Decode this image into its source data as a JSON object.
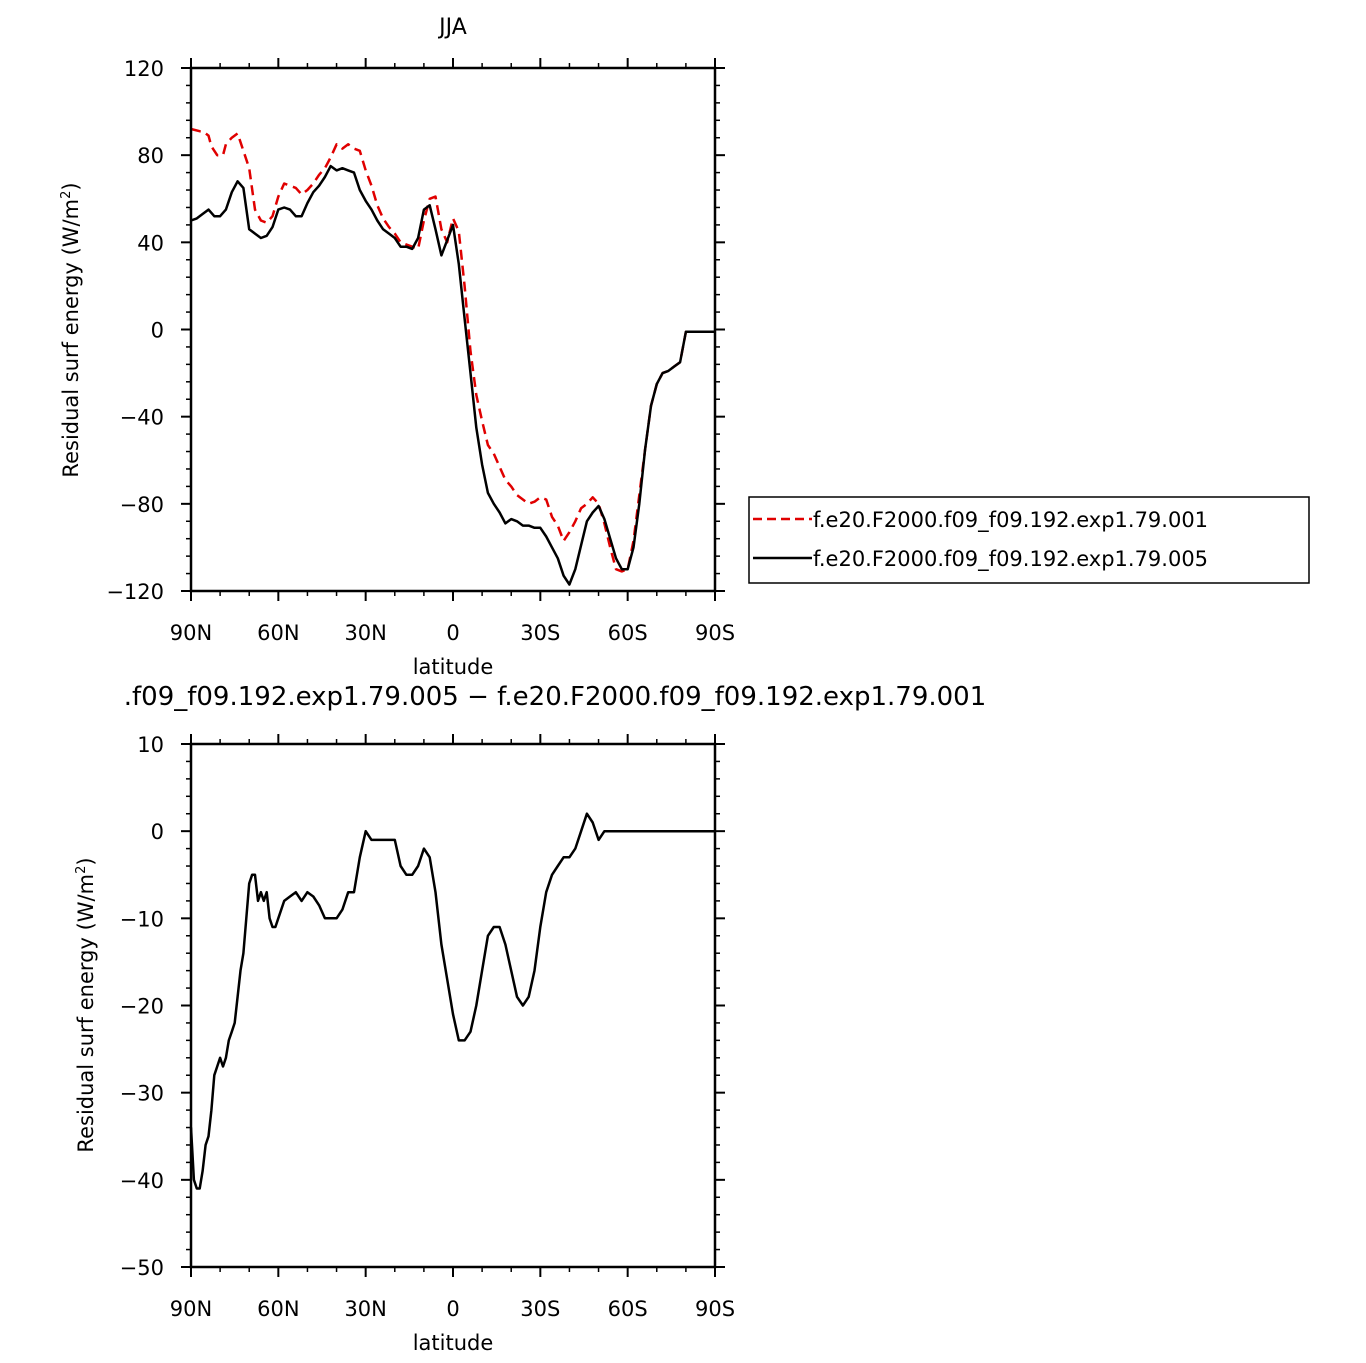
{
  "chart_data": [
    {
      "type": "line",
      "title": "JJA",
      "xlabel": "latitude",
      "ylabel": "Residual surf energy (W/m²)",
      "ylabel_main": "Residual surf energy (W/m",
      "ylabel_sup": "2",
      "ylabel_end": ")",
      "xlim": [
        90,
        -90
      ],
      "ylim": [
        -120,
        120
      ],
      "x_ticks": [
        90,
        60,
        30,
        0,
        -30,
        -60,
        -90
      ],
      "x_tick_labels": [
        "90N",
        "60N",
        "30N",
        "0",
        "30S",
        "60S",
        "90S"
      ],
      "y_ticks": [
        -120,
        -80,
        -40,
        0,
        40,
        80,
        120
      ],
      "y_tick_labels": [
        "−120",
        "−80",
        "−40",
        "0",
        "40",
        "80",
        "120"
      ],
      "legend_position": "right",
      "series": [
        {
          "name": "f.e20.F2000.f09_f09.192.exp1.79.001",
          "color": "#e00000",
          "dash": "dashed",
          "x": [
            90,
            87,
            86,
            84,
            83,
            81,
            79,
            78,
            76,
            74,
            72,
            70,
            68,
            66,
            64,
            62,
            60,
            58,
            56,
            54,
            52,
            50,
            48,
            46,
            44,
            42,
            40,
            38,
            36,
            34,
            32,
            30,
            28,
            26,
            24,
            22,
            20,
            18,
            16,
            14,
            12,
            10,
            8,
            6,
            4,
            2,
            0,
            -2,
            -4,
            -6,
            -8,
            -10,
            -12,
            -14,
            -16,
            -18,
            -20,
            -22,
            -24,
            -26,
            -28,
            -30,
            -32,
            -34,
            -36,
            -38,
            -40,
            -42,
            -44,
            -46,
            -48,
            -50,
            -52,
            -54,
            -56,
            -58,
            -60,
            -62,
            -64,
            -66,
            -68,
            -70,
            -72,
            -74,
            -76,
            -78,
            -80,
            -82,
            -84,
            -86,
            -88,
            -90
          ],
          "y": [
            92,
            91,
            91,
            89,
            84,
            80,
            80,
            85,
            88,
            90,
            82,
            74,
            55,
            50,
            49,
            52,
            61,
            67,
            66,
            65,
            62,
            64,
            67,
            71,
            74,
            79,
            85,
            83,
            85,
            83,
            82,
            73,
            66,
            57,
            51,
            47,
            44,
            40,
            39,
            38,
            37,
            50,
            60,
            61,
            46,
            40,
            51,
            45,
            20,
            -10,
            -30,
            -42,
            -53,
            -57,
            -63,
            -69,
            -72,
            -76,
            -78,
            -80,
            -79,
            -77,
            -78,
            -86,
            -90,
            -97,
            -93,
            -88,
            -82,
            -80,
            -77,
            -80,
            -89,
            -100,
            -110,
            -111,
            -110,
            -97,
            -76,
            -55,
            -35,
            -25,
            -20,
            -19,
            -17,
            -15,
            -1,
            -1,
            -1,
            -1,
            -1,
            -1
          ]
        },
        {
          "name": "f.e20.F2000.f09_f09.192.exp1.79.005",
          "color": "#000000",
          "dash": "solid",
          "x": [
            90,
            88,
            86,
            84,
            82,
            80,
            78,
            76,
            74,
            72,
            70,
            68,
            66,
            64,
            62,
            60,
            58,
            56,
            54,
            52,
            50,
            48,
            46,
            44,
            42,
            40,
            38,
            36,
            34,
            32,
            30,
            28,
            26,
            24,
            22,
            20,
            18,
            16,
            14,
            12,
            10,
            8,
            6,
            4,
            2,
            0,
            -2,
            -4,
            -6,
            -8,
            -10,
            -12,
            -14,
            -16,
            -18,
            -20,
            -22,
            -24,
            -26,
            -28,
            -30,
            -32,
            -34,
            -36,
            -38,
            -40,
            -42,
            -44,
            -46,
            -48,
            -50,
            -52,
            -54,
            -56,
            -58,
            -60,
            -62,
            -64,
            -66,
            -68,
            -70,
            -72,
            -74,
            -76,
            -78,
            -80,
            -82,
            -84,
            -86,
            -88,
            -90
          ],
          "y": [
            50,
            51,
            53,
            55,
            52,
            52,
            55,
            63,
            68,
            65,
            46,
            44,
            42,
            43,
            47,
            55,
            56,
            55,
            52,
            52,
            58,
            63,
            66,
            70,
            75,
            73,
            74,
            73,
            72,
            64,
            59,
            55,
            50,
            46,
            44,
            42,
            38,
            38,
            37,
            42,
            55,
            57,
            46,
            34,
            41,
            48,
            30,
            5,
            -20,
            -45,
            -62,
            -75,
            -80,
            -84,
            -89,
            -87,
            -88,
            -90,
            -90,
            -91,
            -91,
            -95,
            -100,
            -105,
            -113,
            -117,
            -110,
            -99,
            -88,
            -84,
            -81,
            -87,
            -96,
            -105,
            -110,
            -110,
            -100,
            -80,
            -55,
            -35,
            -25,
            -20,
            -19,
            -17,
            -15,
            -1,
            -1,
            -1,
            -1,
            -1,
            -1
          ]
        }
      ]
    },
    {
      "type": "line",
      "title": ".f09_f09.192.exp1.79.005 − f.e20.F2000.f09_f09.192.exp1.79.001",
      "xlabel": "latitude",
      "ylabel": "Residual surf energy (W/m²)",
      "ylabel_main": "Residual surf energy (W/m",
      "ylabel_sup": "2",
      "ylabel_end": ")",
      "xlim": [
        90,
        -90
      ],
      "ylim": [
        -50,
        10
      ],
      "x_ticks": [
        90,
        60,
        30,
        0,
        -30,
        -60,
        -90
      ],
      "x_tick_labels": [
        "90N",
        "60N",
        "30N",
        "0",
        "30S",
        "60S",
        "90S"
      ],
      "y_ticks": [
        -50,
        -40,
        -30,
        -20,
        -10,
        0,
        10
      ],
      "y_tick_labels": [
        "−50",
        "−40",
        "−30",
        "−20",
        "−10",
        "0",
        "10"
      ],
      "series": [
        {
          "color": "#000000",
          "dash": "solid",
          "x": [
            90,
            89,
            88,
            87,
            86,
            85,
            84,
            83,
            82,
            81,
            80,
            79,
            78,
            77,
            76,
            75,
            74,
            73,
            72,
            71,
            70,
            69,
            68,
            67,
            66,
            65,
            64,
            63,
            62,
            61,
            60,
            58,
            56,
            54,
            52,
            50,
            48,
            46,
            44,
            42,
            40,
            38,
            36,
            34,
            32,
            30,
            28,
            26,
            24,
            22,
            20,
            18,
            16,
            14,
            12,
            10,
            8,
            6,
            4,
            2,
            0,
            -2,
            -4,
            -6,
            -8,
            -10,
            -12,
            -14,
            -16,
            -18,
            -20,
            -22,
            -24,
            -26,
            -28,
            -30,
            -32,
            -34,
            -36,
            -38,
            -40,
            -42,
            -44,
            -46,
            -48,
            -50,
            -52,
            -54,
            -56,
            -58,
            -60,
            -62,
            -64,
            -66,
            -68,
            -70,
            -72,
            -75,
            -80,
            -85,
            -90
          ],
          "y": [
            -34,
            -40,
            -41,
            -41,
            -39,
            -36,
            -35,
            -32,
            -28,
            -27,
            -26,
            -27,
            -26,
            -24,
            -23,
            -22,
            -19,
            -16,
            -14,
            -10,
            -6,
            -5,
            -5,
            -8,
            -7,
            -8,
            -7,
            -10,
            -11,
            -11,
            -10,
            -8,
            -7.5,
            -7,
            -8,
            -7,
            -7.5,
            -8.5,
            -10,
            -10,
            -10,
            -9,
            -7,
            -7,
            -3,
            0,
            -1,
            -1,
            -1,
            -1,
            -1,
            -4,
            -5,
            -5,
            -4,
            -2,
            -3,
            -7,
            -13,
            -17,
            -21,
            -24,
            -24,
            -23,
            -20,
            -16,
            -12,
            -11,
            -11,
            -13,
            -16,
            -19,
            -20,
            -19,
            -16,
            -11,
            -7,
            -5,
            -4,
            -3,
            -3,
            -2,
            0,
            2,
            1,
            -1,
            0,
            0,
            0,
            0,
            0,
            0,
            0,
            0,
            0,
            0,
            0,
            0,
            0,
            0,
            0
          ]
        }
      ]
    }
  ]
}
